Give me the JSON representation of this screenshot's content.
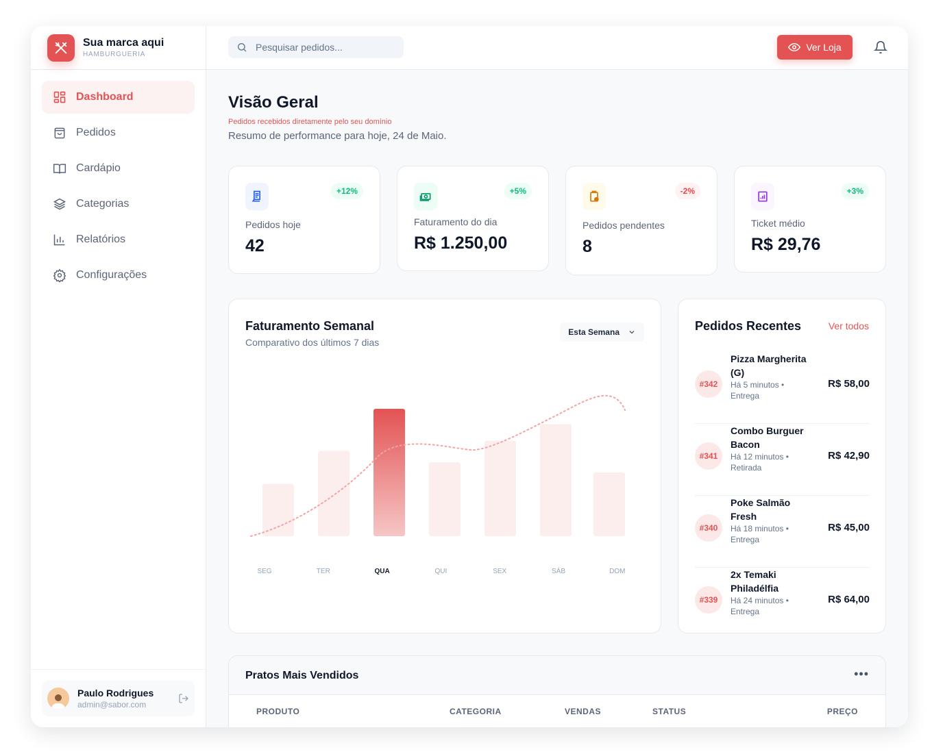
{
  "brand": {
    "name": "Sua marca aqui",
    "subtitle": "HAMBURGUERIA"
  },
  "nav": [
    {
      "label": "Dashboard",
      "icon": "grid-icon"
    },
    {
      "label": "Pedidos",
      "icon": "bag-icon"
    },
    {
      "label": "Cardápio",
      "icon": "book-icon"
    },
    {
      "label": "Categorias",
      "icon": "layers-icon"
    },
    {
      "label": "Relatórios",
      "icon": "bar-chart-icon"
    },
    {
      "label": "Configurações",
      "icon": "gear-icon"
    }
  ],
  "user": {
    "name": "Paulo Rodrigues",
    "email": "admin@sabor.com"
  },
  "header": {
    "search_placeholder": "Pesquisar pedidos...",
    "store_button": "Ver Loja"
  },
  "page": {
    "title": "Visão Geral",
    "note": "Pedidos recebidos diretamente pelo seu domínio",
    "subtitle": "Resumo de performance para hoje, 24 de Maio."
  },
  "stats": [
    {
      "label": "Pedidos hoje",
      "value": "42",
      "change": "+12%",
      "trend": "up",
      "color": "#2563eb",
      "bg": "#eff4ff"
    },
    {
      "label": "Faturamento do dia",
      "value": "R$ 1.250,00",
      "change": "+5%",
      "trend": "up",
      "color": "#059669",
      "bg": "#ecfdf5"
    },
    {
      "label": "Pedidos pendentes",
      "value": "8",
      "change": "-2%",
      "trend": "down",
      "color": "#d97706",
      "bg": "#fffbeb"
    },
    {
      "label": "Ticket médio",
      "value": "R$ 29,76",
      "change": "+3%",
      "trend": "up",
      "color": "#9333ea",
      "bg": "#faf5ff"
    }
  ],
  "weekly": {
    "title": "Faturamento Semanal",
    "subtitle": "Comparativo dos últimos 7 dias",
    "range": "Esta Semana"
  },
  "chart_data": {
    "type": "bar",
    "categories": [
      "SEG",
      "TER",
      "QUA",
      "QUI",
      "SEX",
      "SÁB",
      "DOM"
    ],
    "values": [
      41,
      67,
      100,
      58,
      75,
      88,
      50
    ],
    "highlight": "QUA",
    "ylim": [
      0,
      100
    ],
    "grid": false,
    "title": "Faturamento Semanal",
    "trend_line": [
      5,
      25,
      55,
      60,
      60,
      75,
      100
    ]
  },
  "recent": {
    "title": "Pedidos Recentes",
    "link": "Ver todos",
    "orders": [
      {
        "id": "#342",
        "name": "Pizza Margherita (G)",
        "meta": "Há 5 minutos • Entrega",
        "price": "R$ 58,00"
      },
      {
        "id": "#341",
        "name": "Combo Burguer Bacon",
        "meta": "Há 12 minutos • Retirada",
        "price": "R$ 42,90"
      },
      {
        "id": "#340",
        "name": "Poke Salmão Fresh",
        "meta": "Há 18 minutos • Entrega",
        "price": "R$ 45,00"
      },
      {
        "id": "#339",
        "name": "2x Temaki Philadélfia",
        "meta": "Há 24 minutos • Entrega",
        "price": "R$ 64,00"
      }
    ]
  },
  "top": {
    "title": "Pratos Mais Vendidos",
    "columns": [
      "PRODUTO",
      "CATEGORIA",
      "VENDAS",
      "STATUS",
      "PREÇO"
    ]
  }
}
